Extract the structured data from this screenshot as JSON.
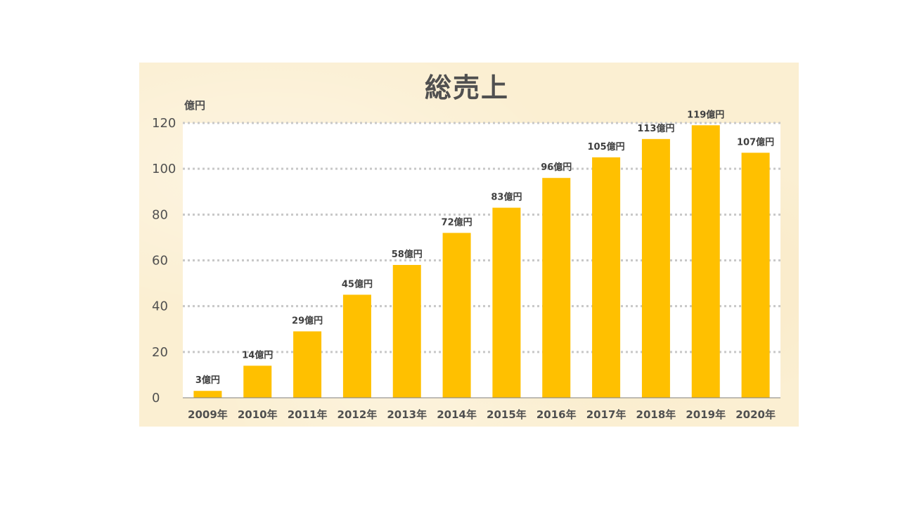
{
  "colors": {
    "bar": "#FFC000",
    "panel": "#FBEFD2",
    "plot_bg": "#FFFFFF",
    "text": "#505050",
    "grid": "#C8C8C8"
  },
  "chart_data": {
    "type": "bar",
    "title": "総売上",
    "ylabel": "億円",
    "xlabel": "",
    "categories": [
      "2009年",
      "2010年",
      "2011年",
      "2012年",
      "2013年",
      "2014年",
      "2015年",
      "2016年",
      "2017年",
      "2018年",
      "2019年",
      "2020年"
    ],
    "values": [
      3,
      14,
      29,
      45,
      58,
      72,
      83,
      96,
      105,
      113,
      119,
      107
    ],
    "data_labels": [
      "3億円",
      "14億円",
      "29億円",
      "45億円",
      "58億円",
      "72億円",
      "83億円",
      "96億円",
      "105億円",
      "113億円",
      "119億円",
      "107億円"
    ],
    "ylim": [
      0,
      120
    ],
    "yticks": [
      "0",
      "20",
      "40",
      "60",
      "80",
      "100",
      "120"
    ],
    "grid": true,
    "legend": "none"
  }
}
